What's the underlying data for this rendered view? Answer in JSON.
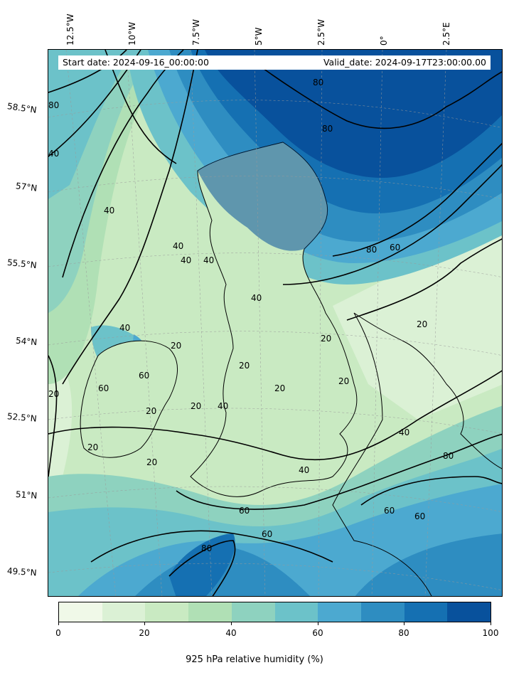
{
  "map": {
    "start_date": "Start date: 2024-09-16_00:00:00",
    "valid_date": "Valid_date: 2024-09-17T23:00:00.00",
    "lon_labels": [
      "12.5°W",
      "10°W",
      "7.5°W",
      "5°W",
      "2.5°W",
      "0°",
      "2.5°E"
    ],
    "lat_labels": [
      "58.5°N",
      "57°N",
      "55.5°N",
      "54°N",
      "52.5°N",
      "51°N",
      "49.5°N"
    ],
    "contour_labels": [
      "80",
      "80",
      "80",
      "40",
      "40",
      "40",
      "40",
      "40",
      "40",
      "40",
      "80",
      "60",
      "20",
      "20",
      "20",
      "20",
      "20",
      "20",
      "60",
      "40",
      "20",
      "20",
      "20",
      "40",
      "40",
      "60",
      "60",
      "60",
      "60",
      "80",
      "80",
      "60",
      "20",
      "20"
    ],
    "contour_label_color": "#000000"
  },
  "colorbar": {
    "label": "925 hPa relative humidity (%)",
    "ticks": [
      "0",
      "20",
      "40",
      "60",
      "80",
      "100"
    ],
    "colors": [
      "#f0f9e8",
      "#dbf1d5",
      "#c9eac2",
      "#b0e0b5",
      "#8ed2bf",
      "#6cc2c9",
      "#4ca9d0",
      "#2e8dc1",
      "#1570b2",
      "#08519c"
    ]
  }
}
